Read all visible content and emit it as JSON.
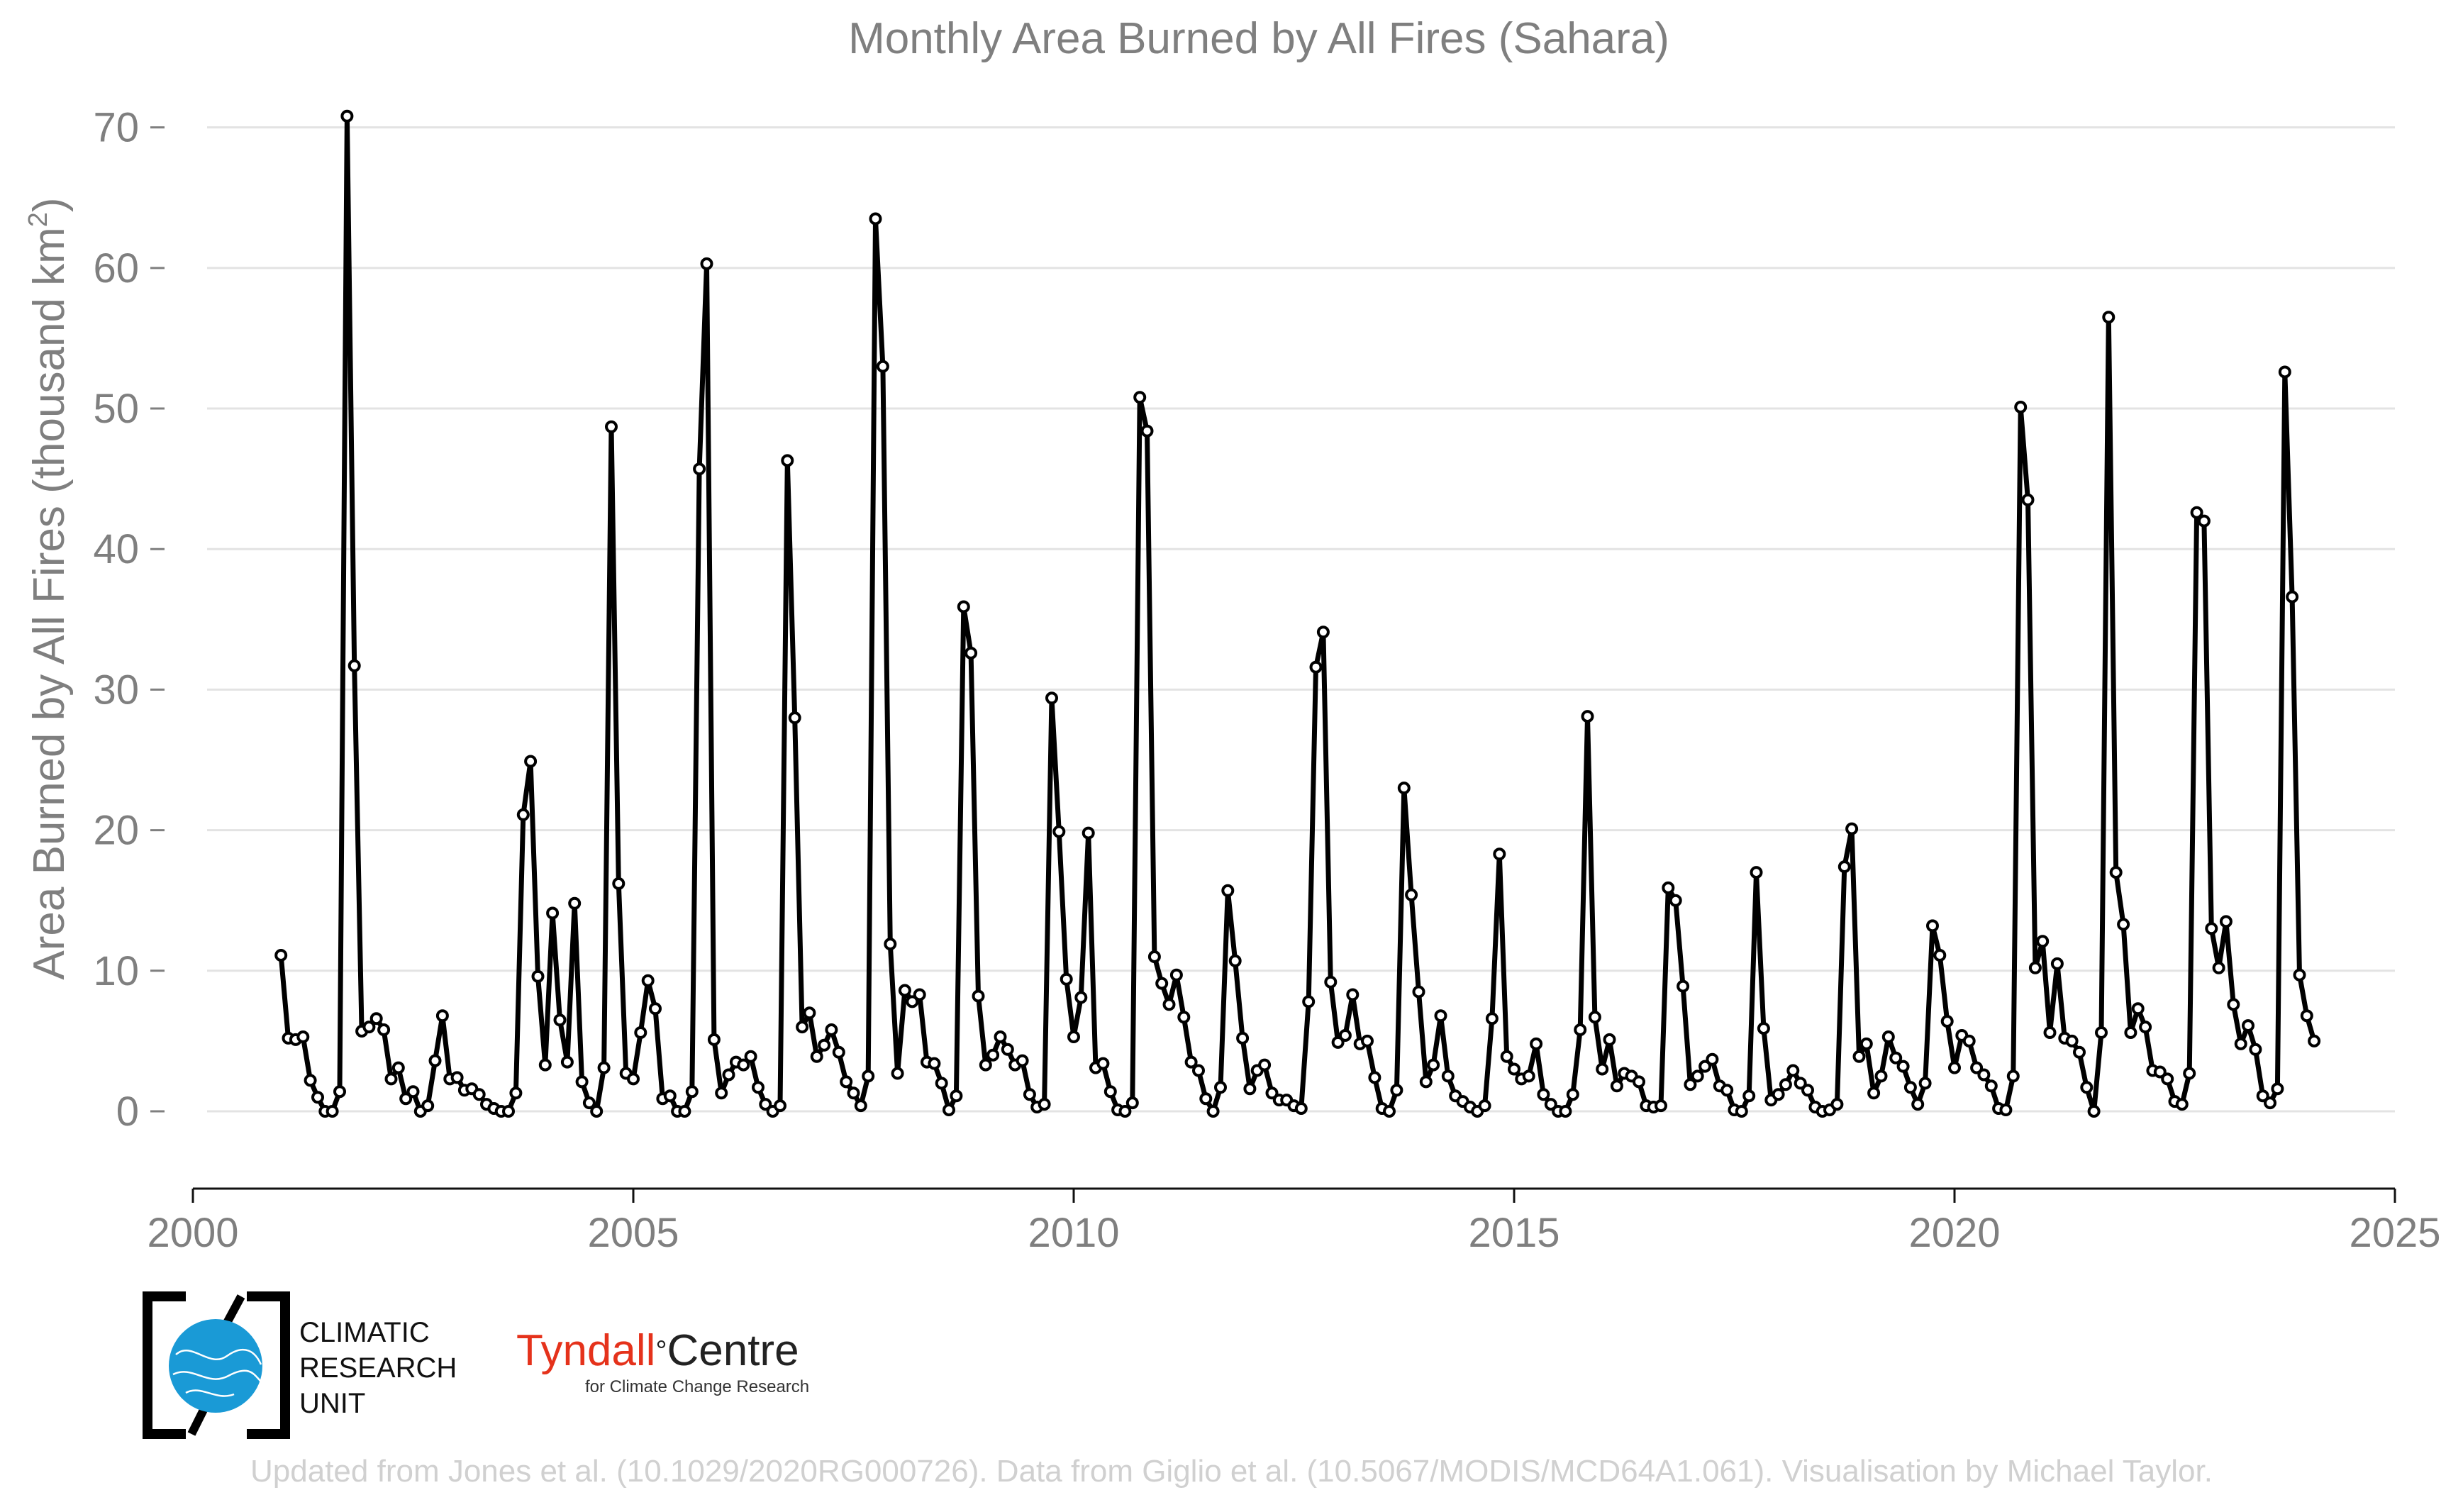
{
  "chart_data": {
    "type": "line",
    "title": "Monthly Area Burned by All Fires (Sahara)",
    "ylabel_main": "Area Burned by All Fires (thousand km",
    "ylabel_sup": "2",
    "ylabel_end": ")",
    "xlim": [
      2000,
      2025
    ],
    "ylim": [
      -5.5,
      72
    ],
    "xticks": [
      2000,
      2005,
      2010,
      2015,
      2020,
      2025
    ],
    "yticks": [
      0,
      10,
      20,
      30,
      40,
      50,
      60,
      70
    ],
    "grid": true,
    "series_color": "#000000",
    "start_year": 2001,
    "start_month": 1,
    "values": [
      11.1,
      5.2,
      5.1,
      5.3,
      2.2,
      1.0,
      0.0,
      0.0,
      1.4,
      70.8,
      31.7,
      5.7,
      6.0,
      6.6,
      5.8,
      2.3,
      3.1,
      0.9,
      1.4,
      0.0,
      0.4,
      3.6,
      6.8,
      2.3,
      2.4,
      1.5,
      1.6,
      1.2,
      0.5,
      0.2,
      0.0,
      0.0,
      1.3,
      21.1,
      24.9,
      9.6,
      3.3,
      14.1,
      6.5,
      3.5,
      14.8,
      2.1,
      0.6,
      0.0,
      3.1,
      48.7,
      16.2,
      2.7,
      2.3,
      5.6,
      9.3,
      7.3,
      0.9,
      1.1,
      0.0,
      0.0,
      1.4,
      45.7,
      60.3,
      5.1,
      1.3,
      2.6,
      3.5,
      3.3,
      3.9,
      1.7,
      0.5,
      0.0,
      0.4,
      46.3,
      28.0,
      6.0,
      7.0,
      3.9,
      4.7,
      5.8,
      4.2,
      2.1,
      1.3,
      0.4,
      2.5,
      63.5,
      53.0,
      11.9,
      2.7,
      8.6,
      7.8,
      8.3,
      3.5,
      3.4,
      2.0,
      0.1,
      1.1,
      35.9,
      32.6,
      8.2,
      3.3,
      4.0,
      5.3,
      4.4,
      3.3,
      3.6,
      1.2,
      0.3,
      0.5,
      29.4,
      19.9,
      9.4,
      5.3,
      8.1,
      19.8,
      3.1,
      3.4,
      1.4,
      0.1,
      0.0,
      0.6,
      50.8,
      48.4,
      11.0,
      9.1,
      7.6,
      9.7,
      6.7,
      3.5,
      2.9,
      0.9,
      0.0,
      1.7,
      15.7,
      10.7,
      5.2,
      1.6,
      2.9,
      3.3,
      1.3,
      0.8,
      0.8,
      0.4,
      0.2,
      7.8,
      31.6,
      34.1,
      9.2,
      4.9,
      5.4,
      8.3,
      4.8,
      5.0,
      2.4,
      0.2,
      0.0,
      1.5,
      23.0,
      15.4,
      8.5,
      2.1,
      3.3,
      6.8,
      2.5,
      1.1,
      0.7,
      0.3,
      0.0,
      0.4,
      6.6,
      18.3,
      3.9,
      3.0,
      2.3,
      2.5,
      4.8,
      1.2,
      0.5,
      0.0,
      0.0,
      1.2,
      5.8,
      28.1,
      6.7,
      3.0,
      5.1,
      1.8,
      2.7,
      2.5,
      2.1,
      0.4,
      0.3,
      0.4,
      15.9,
      15.0,
      8.9,
      1.9,
      2.5,
      3.2,
      3.7,
      1.8,
      1.5,
      0.1,
      0.0,
      1.1,
      17.0,
      5.9,
      0.8,
      1.2,
      1.9,
      2.9,
      2.0,
      1.5,
      0.3,
      0.0,
      0.1,
      0.5,
      17.4,
      20.1,
      3.9,
      4.8,
      1.3,
      2.5,
      5.3,
      3.8,
      3.2,
      1.7,
      0.5,
      2.0,
      13.2,
      11.1,
      6.4,
      3.1,
      5.4,
      5.0,
      3.1,
      2.6,
      1.8,
      0.2,
      0.1,
      2.5,
      50.1,
      43.5,
      10.2,
      12.1,
      5.6,
      10.5,
      5.2,
      5.0,
      4.2,
      1.7,
      0.0,
      5.6,
      56.5,
      17.0,
      13.3,
      5.6,
      7.3,
      6.0,
      2.9,
      2.8,
      2.3,
      0.7,
      0.5,
      2.7,
      42.6,
      42.0,
      13.0,
      10.2,
      13.5,
      7.6,
      4.8,
      6.1,
      4.4,
      1.1,
      0.6,
      1.6,
      52.6,
      36.6,
      9.7,
      6.8,
      5.0
    ]
  },
  "credit": "Updated from Jones et al. (10.1029/2020RG000726). Data from Giglio et al. (10.5067/MODIS/MCD64A1.061). Visualisation by Michael Taylor.",
  "logos": {
    "cru_line1": "CLIMATIC",
    "cru_line2": "RESEARCH",
    "cru_line3": "UNIT",
    "tyndall_red": "Tyndall",
    "tyndall_deg": "°",
    "tyndall_black": "Centre",
    "tyndall_sub": "for Climate Change Research"
  }
}
